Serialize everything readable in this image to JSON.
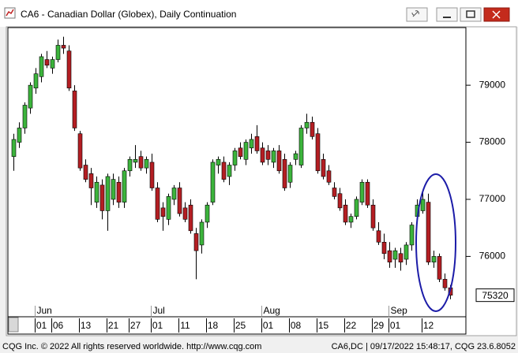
{
  "window_title": "CA6 - Canadian Dollar (Globex), Daily Continuation",
  "chart_data": {
    "type": "candlestick",
    "up_color": "#3cb43c",
    "down_color": "#b41e23",
    "categories": [
      null,
      null,
      null,
      null,
      null,
      "01",
      null,
      null,
      "06",
      null,
      null,
      null,
      null,
      "13",
      null,
      null,
      null,
      null,
      "21",
      null,
      null,
      null,
      "27",
      null,
      null,
      null,
      "01",
      null,
      null,
      null,
      null,
      "11",
      null,
      null,
      null,
      null,
      "18",
      null,
      null,
      null,
      null,
      "25",
      null,
      null,
      null,
      null,
      "01",
      null,
      null,
      null,
      null,
      "08",
      null,
      null,
      null,
      null,
      "15",
      null,
      null,
      null,
      null,
      "22",
      null,
      null,
      null,
      null,
      "29",
      null,
      null,
      "01",
      null,
      null,
      null,
      null,
      null,
      "12",
      null,
      null,
      null,
      null
    ],
    "months": [
      "Jun",
      "Jul",
      "Aug",
      "Sep"
    ],
    "open": [
      77750,
      78000,
      78250,
      78600,
      78950,
      79150,
      79450,
      79300,
      79450,
      79700,
      79600,
      78900,
      78150,
      77600,
      77450,
      76950,
      77250,
      76800,
      77000,
      77300,
      76950,
      77500,
      77650,
      77750,
      77550,
      77650,
      77200,
      76850,
      76650,
      77000,
      77200,
      76850,
      76900,
      76400,
      76200,
      76600,
      76950,
      77600,
      77650,
      77400,
      77600,
      77900,
      77700,
      77900,
      78100,
      77900,
      77850,
      77650,
      77850,
      77700,
      77300,
      77700,
      77600,
      78250,
      78350,
      78150,
      77700,
      77500,
      77200,
      77100,
      76900,
      76600,
      76700,
      76950,
      77300,
      76900,
      76450,
      76250,
      76100,
      75950,
      76050,
      75950,
      76200,
      76700,
      76800,
      76950,
      75900,
      76000,
      75600,
      75450
    ],
    "high": [
      78150,
      78350,
      78700,
      79050,
      79300,
      79550,
      79600,
      79500,
      79800,
      79850,
      79700,
      79000,
      78200,
      77700,
      77550,
      77400,
      77350,
      77450,
      77450,
      77400,
      77550,
      77750,
      77950,
      77850,
      77750,
      77800,
      77300,
      76950,
      77100,
      77250,
      77300,
      76950,
      77000,
      76500,
      76650,
      76950,
      77700,
      77750,
      77750,
      77650,
      77900,
      78000,
      78050,
      78150,
      78300,
      78000,
      77950,
      77900,
      77950,
      77800,
      77650,
      77850,
      78300,
      78500,
      78450,
      78250,
      77800,
      77600,
      77300,
      77200,
      77000,
      76750,
      77050,
      77350,
      77350,
      77000,
      76600,
      76400,
      76250,
      76150,
      76150,
      76250,
      76600,
      77000,
      77150,
      77100,
      76100,
      76050,
      75700,
      75500
    ],
    "low": [
      77500,
      77900,
      78150,
      78500,
      78850,
      79050,
      79300,
      79200,
      79400,
      79550,
      78900,
      78200,
      77500,
      77300,
      76900,
      76850,
      76650,
      76450,
      76900,
      76850,
      76850,
      77400,
      77550,
      77500,
      77450,
      77150,
      76600,
      76450,
      76550,
      76900,
      76700,
      76600,
      76400,
      75600,
      76050,
      76500,
      76900,
      77450,
      77300,
      77250,
      77500,
      77700,
      77600,
      77800,
      77800,
      77600,
      77600,
      77550,
      77450,
      77150,
      77200,
      77600,
      77550,
      78150,
      78050,
      77450,
      77350,
      77250,
      77000,
      76800,
      76550,
      76500,
      76650,
      76900,
      76850,
      76450,
      76200,
      75950,
      75800,
      75800,
      75750,
      75850,
      76100,
      76650,
      76750,
      75850,
      75800,
      75550,
      75400,
      75250
    ],
    "close": [
      78050,
      78250,
      78650,
      79000,
      79200,
      79500,
      79350,
      79450,
      79700,
      79650,
      78950,
      78250,
      77550,
      77350,
      77200,
      77300,
      76800,
      77400,
      77350,
      76950,
      77500,
      77700,
      77700,
      77550,
      77700,
      77200,
      76650,
      76700,
      77050,
      77200,
      76750,
      76650,
      76450,
      76100,
      76600,
      76900,
      77650,
      77700,
      77350,
      77600,
      77850,
      77750,
      78000,
      78050,
      77850,
      77650,
      77700,
      77850,
      77500,
      77200,
      77600,
      77800,
      78250,
      78350,
      78100,
      77500,
      77400,
      77300,
      77050,
      76850,
      76600,
      76700,
      77000,
      77300,
      76900,
      76500,
      76250,
      76050,
      75900,
      76100,
      75900,
      76200,
      76550,
      76900,
      77000,
      75900,
      76000,
      75600,
      75450,
      75320
    ],
    "last_price": 75320,
    "ylim": [
      74970,
      80010
    ],
    "yticks": [
      76000,
      77000,
      78000,
      79000
    ]
  },
  "footer": {
    "left": "CQG Inc. © 2022 All rights reserved worldwide. http://www.cqg.com",
    "right": "CA6,DC | 09/17/2022 15:48:17, CQG 23.6.8052"
  }
}
